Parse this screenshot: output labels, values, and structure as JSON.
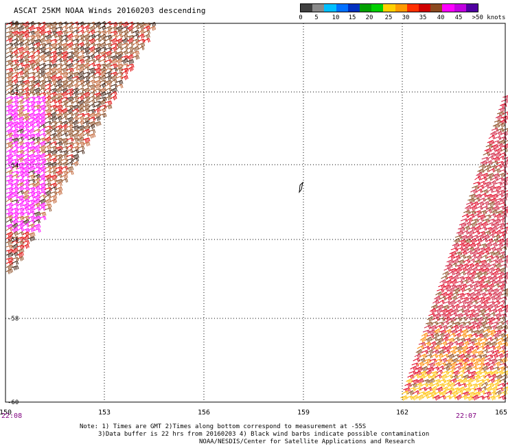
{
  "title": "ASCAT 25KM NOAA Winds 20160203 descending",
  "scale": {
    "colors": [
      "#404040",
      "#8a8a8a",
      "#00bfff",
      "#0070ff",
      "#0030c0",
      "#00a000",
      "#00d000",
      "#ffd000",
      "#ff9a00",
      "#ff3000",
      "#d00000",
      "#8b4a20",
      "#ff00ff",
      "#c000e0",
      "#5000a0"
    ],
    "labels": [
      "0",
      "5",
      "10",
      "15",
      "20",
      "25",
      "30",
      "35",
      "40",
      "45",
      ">50 knots"
    ]
  },
  "map": {
    "lon_ticks": [
      "150",
      "153",
      "156",
      "159",
      "162",
      "165"
    ],
    "lat_ticks": [
      "-50",
      "-52",
      "-54",
      "-56",
      "-58",
      "-60"
    ],
    "time_left": "22:08",
    "time_right": "22:07"
  },
  "notes": {
    "line1": "Note: 1) Times are GMT 2)Times along bottom correspond to measurement at -55S",
    "line2": "3)Data buffer is 22 hrs from 20160203 4) Black wind barbs indicate possible contamination",
    "line3": "NOAA/NESDIS/Center for Satellite Applications and Research"
  }
}
